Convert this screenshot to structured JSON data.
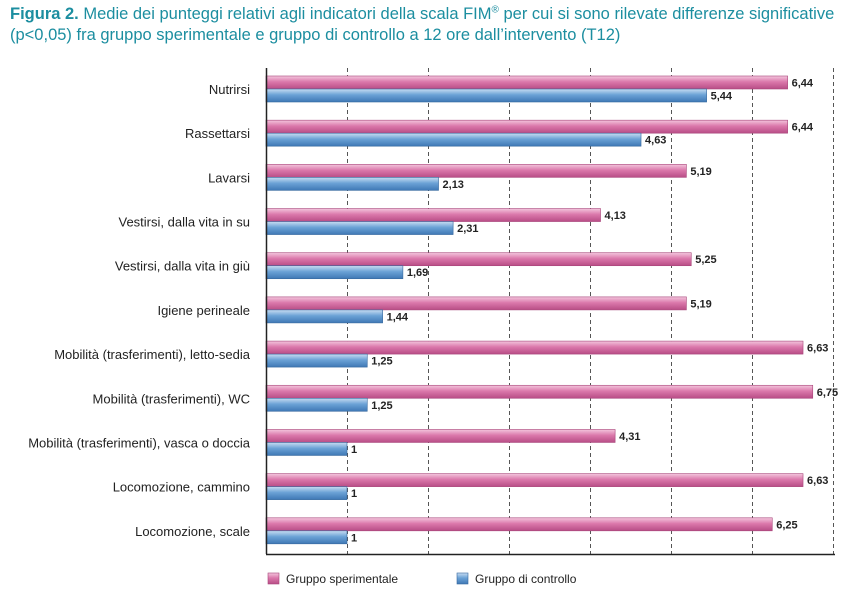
{
  "figure": {
    "label": "Figura 2.",
    "title_main": "Medie dei punteggi relativi agli indicatori della scala FIM",
    "title_sup": "®",
    "title_rest": "per cui si sono rilevate differenze significative (p<0,05) fra gruppo sperimentale e gruppo di controllo a 12 ore dall’intervento (T12)"
  },
  "chart_data": {
    "type": "bar",
    "orientation": "horizontal",
    "categories": [
      "Nutrirsi",
      "Rassettarsi",
      "Lavarsi",
      "Vestirsi, dalla vita in su",
      "Vestirsi, dalla vita in giù",
      "Igiene perineale",
      "Mobilità (trasferimenti), letto-sedia",
      "Mobilità (trasferimenti), WC",
      "Mobilità (trasferimenti), vasca o doccia",
      "Locomozione, cammino",
      "Locomozione, scale"
    ],
    "series": [
      {
        "name": "Gruppo sperimentale",
        "color": "#d4679f",
        "values": [
          6.44,
          6.44,
          5.19,
          4.13,
          5.25,
          5.19,
          6.63,
          6.75,
          4.31,
          6.63,
          6.25
        ],
        "value_labels": [
          "6,44",
          "6,44",
          "5,19",
          "4,13",
          "5,25",
          "5,19",
          "6,63",
          "6,75",
          "4,31",
          "6,63",
          "6,25"
        ]
      },
      {
        "name": "Gruppo di controllo",
        "color": "#5b93cc",
        "values": [
          5.44,
          4.63,
          2.13,
          2.31,
          1.69,
          1.44,
          1.25,
          1.25,
          1,
          1,
          1
        ],
        "value_labels": [
          "5,44",
          "4,63",
          "2,13",
          "2,31",
          "1,69",
          "1,44",
          "1,25",
          "1,25",
          "1",
          "1",
          "1"
        ]
      }
    ],
    "xlim": [
      0,
      7
    ],
    "x_gridlines": [
      1,
      2,
      3,
      4,
      5,
      6,
      7
    ],
    "grid": "vertical dashed",
    "legend_position": "bottom-left",
    "xlabel": "",
    "ylabel": ""
  }
}
